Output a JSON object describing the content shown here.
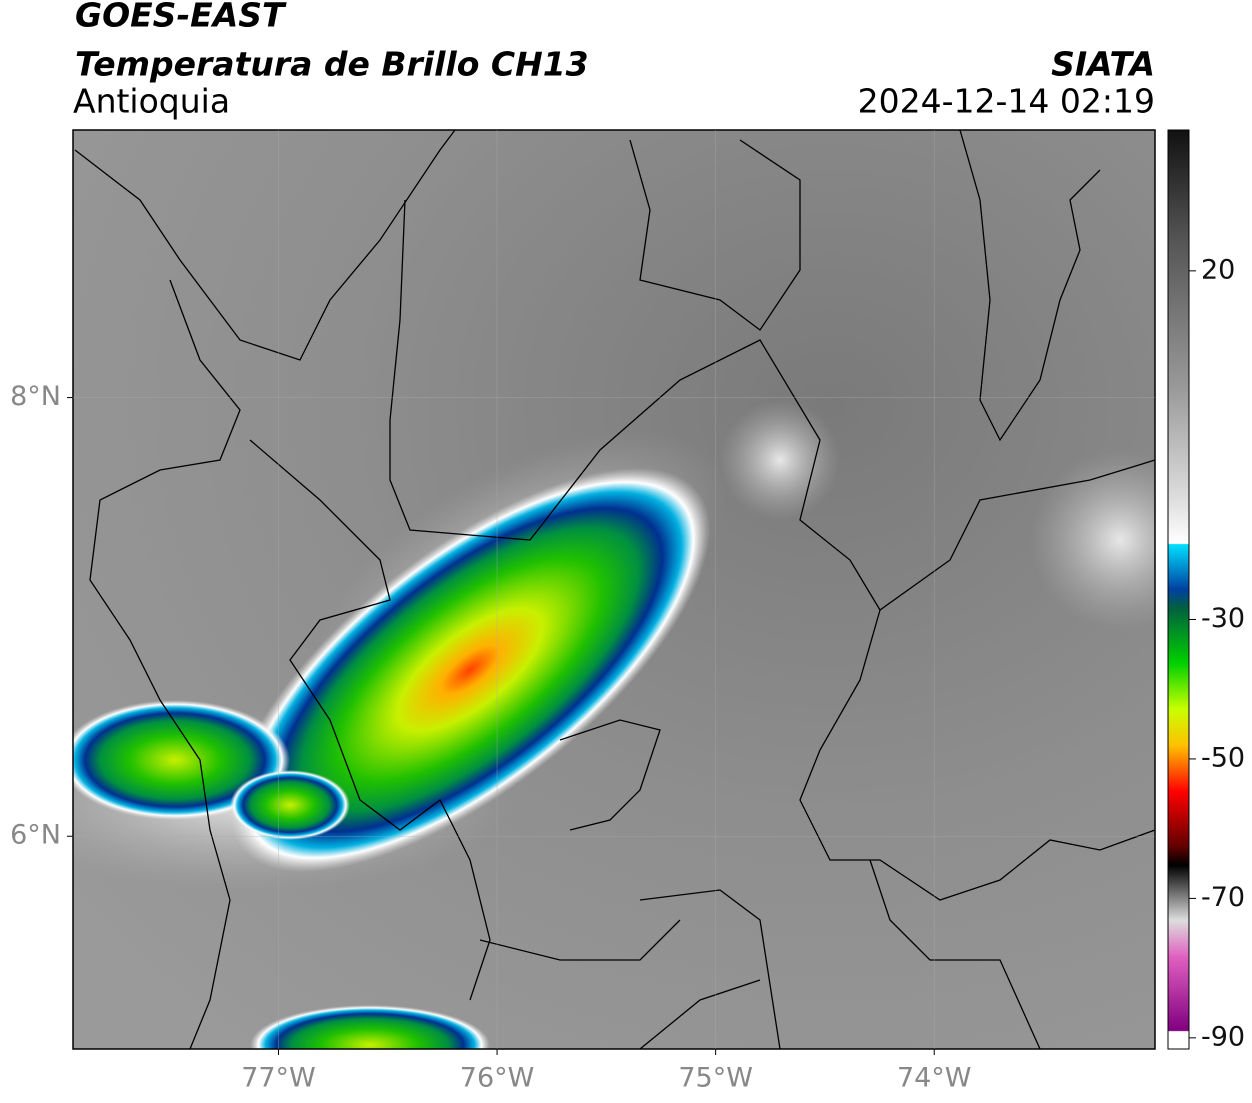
{
  "header": {
    "satellite": "GOES-EAST",
    "product": "Temperatura de Brillo CH13",
    "region": "Antioquia",
    "agency": "SIATA",
    "timestamp": "2024-12-14 02:19"
  },
  "map": {
    "lon_range": [
      -77.94,
      -72.99
    ],
    "lat_range": [
      5.03,
      9.22
    ],
    "lon_ticks": [
      {
        "value": -77,
        "label": "77°W"
      },
      {
        "value": -76,
        "label": "76°W"
      },
      {
        "value": -75,
        "label": "75°W"
      },
      {
        "value": -74,
        "label": "74°W"
      }
    ],
    "lat_ticks": [
      {
        "value": 8,
        "label": "8°N"
      },
      {
        "value": 6,
        "label": "6°N"
      }
    ]
  },
  "colorbar": {
    "range": [
      -91.6,
      40.2
    ],
    "ticks": [
      20,
      -30,
      -50,
      -70,
      -90
    ]
  }
}
